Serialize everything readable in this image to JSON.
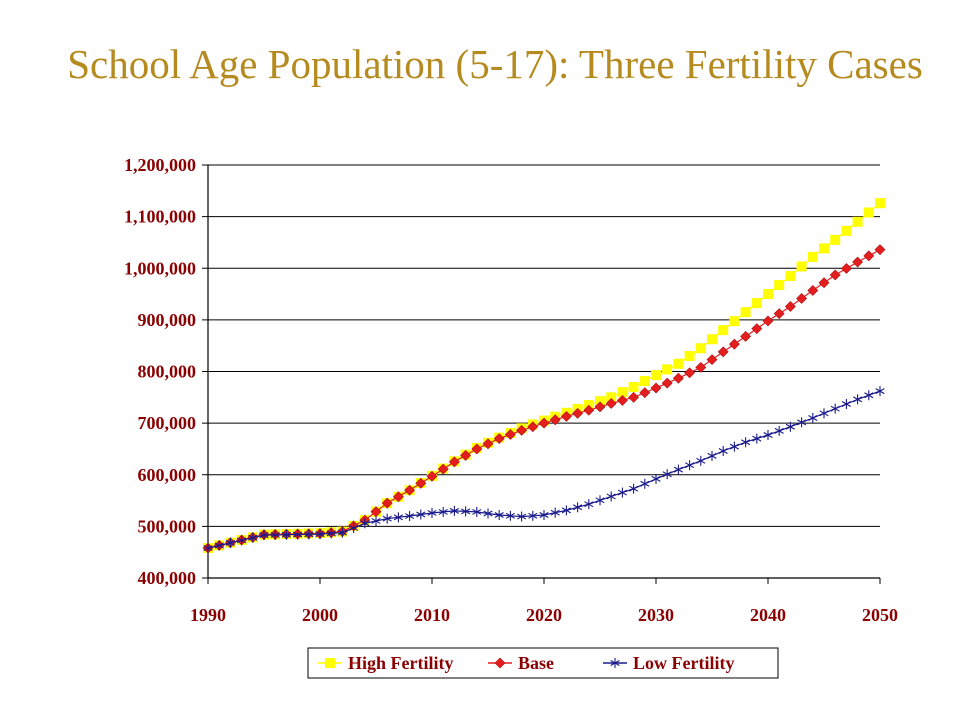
{
  "chart_data": {
    "type": "line",
    "title": "School Age Population (5-17): Three Fertility Cases",
    "xlabel": "",
    "ylabel": "",
    "xlim": [
      1990,
      2050
    ],
    "ylim": [
      400000,
      1200000
    ],
    "xticks": [
      "1990",
      "2000",
      "2010",
      "2020",
      "2030",
      "2040",
      "2050"
    ],
    "yticks": [
      "400,000",
      "500,000",
      "600,000",
      "700,000",
      "800,000",
      "900,000",
      "1,000,000",
      "1,100,000",
      "1,200,000"
    ],
    "grid": "horizontal",
    "legend_position": "bottom",
    "colors": {
      "high": "#FFFF00",
      "base": "#E41E1E",
      "low": "#1A1A8C",
      "axis_text": "#8B0000",
      "title": "#B58A1E"
    },
    "series": [
      {
        "name": "High Fertility",
        "key": "high",
        "marker": "square",
        "points": [
          [
            1990,
            458000
          ],
          [
            1995,
            484000
          ],
          [
            2000,
            487000
          ],
          [
            2002,
            490000
          ],
          [
            2004,
            512000
          ],
          [
            2006,
            545000
          ],
          [
            2008,
            570000
          ],
          [
            2010,
            598000
          ],
          [
            2012,
            626000
          ],
          [
            2014,
            652000
          ],
          [
            2016,
            672000
          ],
          [
            2018,
            690000
          ],
          [
            2020,
            705000
          ],
          [
            2022,
            720000
          ],
          [
            2024,
            735000
          ],
          [
            2026,
            750000
          ],
          [
            2028,
            770000
          ],
          [
            2030,
            793000
          ],
          [
            2032,
            815000
          ],
          [
            2034,
            845000
          ],
          [
            2036,
            880000
          ],
          [
            2038,
            915000
          ],
          [
            2040,
            950000
          ],
          [
            2042,
            985000
          ],
          [
            2044,
            1022000
          ],
          [
            2046,
            1055000
          ],
          [
            2048,
            1090000
          ],
          [
            2050,
            1126000
          ]
        ]
      },
      {
        "name": "Base",
        "key": "base",
        "marker": "diamond",
        "points": [
          [
            1990,
            458000
          ],
          [
            1995,
            484000
          ],
          [
            2000,
            486000
          ],
          [
            2002,
            490000
          ],
          [
            2004,
            512000
          ],
          [
            2006,
            545000
          ],
          [
            2008,
            570000
          ],
          [
            2010,
            597000
          ],
          [
            2012,
            625000
          ],
          [
            2014,
            650000
          ],
          [
            2016,
            670000
          ],
          [
            2018,
            686000
          ],
          [
            2020,
            700000
          ],
          [
            2022,
            713000
          ],
          [
            2024,
            725000
          ],
          [
            2026,
            738000
          ],
          [
            2028,
            750000
          ],
          [
            2030,
            768000
          ],
          [
            2032,
            787000
          ],
          [
            2034,
            808000
          ],
          [
            2036,
            838000
          ],
          [
            2038,
            868000
          ],
          [
            2040,
            898000
          ],
          [
            2042,
            926000
          ],
          [
            2044,
            957000
          ],
          [
            2046,
            987000
          ],
          [
            2048,
            1012000
          ],
          [
            2050,
            1036000
          ]
        ]
      },
      {
        "name": "Low Fertility",
        "key": "low",
        "marker": "asterisk",
        "points": [
          [
            1990,
            458000
          ],
          [
            1995,
            483000
          ],
          [
            2000,
            485000
          ],
          [
            2002,
            488000
          ],
          [
            2004,
            506000
          ],
          [
            2006,
            515000
          ],
          [
            2008,
            520000
          ],
          [
            2010,
            526000
          ],
          [
            2012,
            530000
          ],
          [
            2014,
            528000
          ],
          [
            2016,
            522000
          ],
          [
            2018,
            519000
          ],
          [
            2020,
            522000
          ],
          [
            2022,
            531000
          ],
          [
            2024,
            543000
          ],
          [
            2026,
            558000
          ],
          [
            2028,
            573000
          ],
          [
            2030,
            592000
          ],
          [
            2032,
            610000
          ],
          [
            2034,
            627000
          ],
          [
            2036,
            646000
          ],
          [
            2038,
            663000
          ],
          [
            2040,
            677000
          ],
          [
            2042,
            693000
          ],
          [
            2044,
            710000
          ],
          [
            2046,
            728000
          ],
          [
            2048,
            746000
          ],
          [
            2050,
            762000
          ]
        ]
      }
    ]
  }
}
